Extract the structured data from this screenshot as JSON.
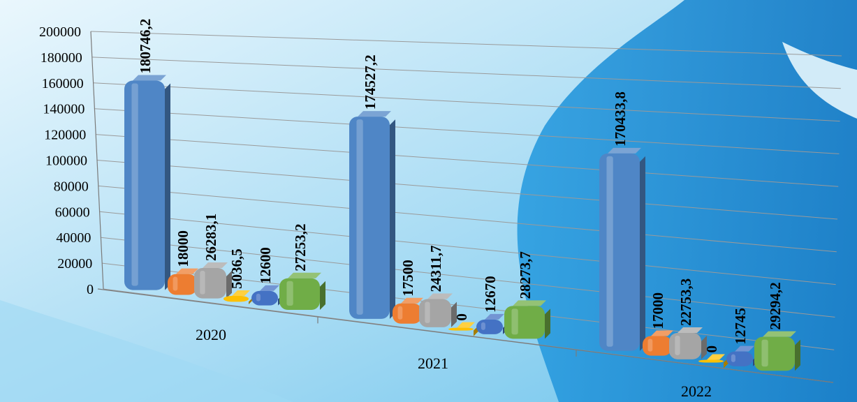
{
  "chart_data": {
    "type": "bar",
    "style": "3d-cylinder-columns",
    "title": "",
    "xlabel": "",
    "ylabel": "",
    "ylim": [
      0,
      200000
    ],
    "yticks": [
      "0",
      "20000",
      "40000",
      "60000",
      "80000",
      "100000",
      "120000",
      "140000",
      "160000",
      "180000",
      "200000"
    ],
    "grid": true,
    "legend": "none",
    "categories": [
      "2020",
      "2021",
      "2022"
    ],
    "series": [
      {
        "color": "#4f86c6",
        "values": [
          180746.2,
          174527.2,
          170433.8
        ],
        "labels": [
          "180746,2",
          "174527,2",
          "170433,8"
        ]
      },
      {
        "color": "#ed7d31",
        "values": [
          18000,
          17500,
          17000
        ],
        "labels": [
          "18000",
          "17500",
          "17000"
        ]
      },
      {
        "color": "#a5a5a5",
        "values": [
          26283.1,
          24311.7,
          22753.3
        ],
        "labels": [
          "26283,1",
          "24311,7",
          "22753,3"
        ]
      },
      {
        "color": "#ffc000",
        "values": [
          5036.5,
          0,
          0
        ],
        "labels": [
          "5036,5",
          "0",
          "0"
        ]
      },
      {
        "color": "#4472c4",
        "values": [
          12600,
          12670,
          12745
        ],
        "labels": [
          "12600",
          "12670",
          "12745"
        ]
      },
      {
        "color": "#70ad47",
        "values": [
          27253.2,
          28273.7,
          29294.2
        ],
        "labels": [
          "27253,2",
          "28273,7",
          "29294,2"
        ]
      }
    ],
    "background": {
      "light": "#e8f6fd",
      "mid": "#7fcdf0",
      "deep": "#1d8fd6"
    }
  }
}
